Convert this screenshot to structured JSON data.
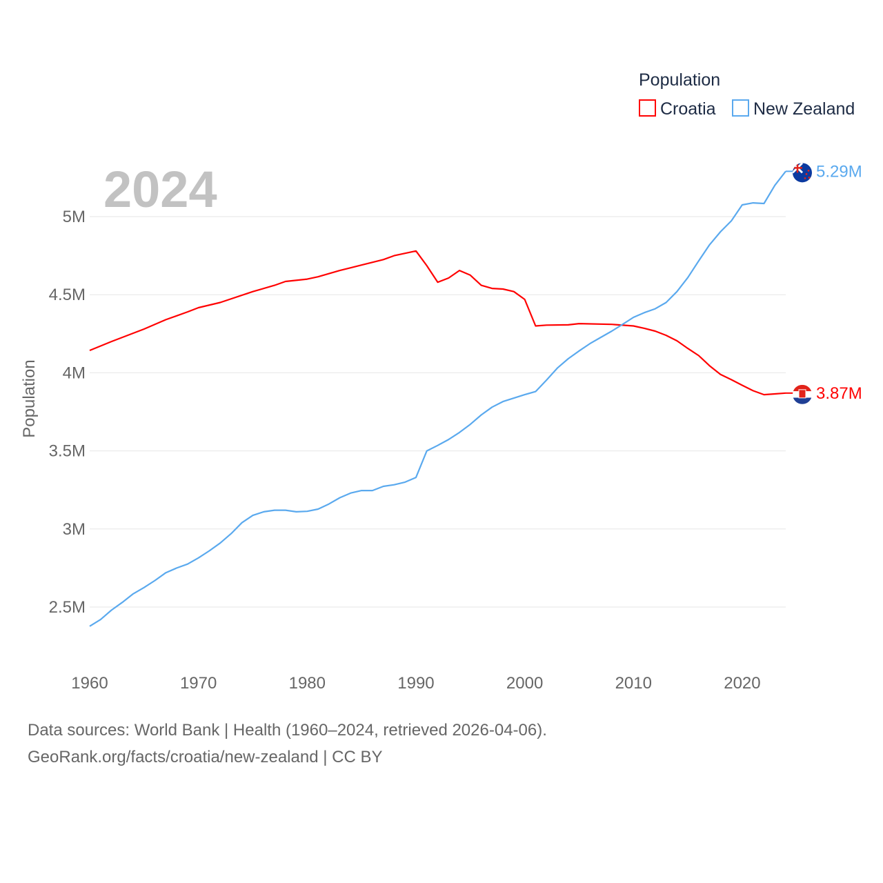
{
  "chart_data": {
    "type": "line",
    "title": "Population",
    "year_label": "2024",
    "ylabel": "Population",
    "xlabel": "",
    "ylim": [
      2.3,
      5.4
    ],
    "xlim": [
      1960,
      2024
    ],
    "y_ticks": [
      {
        "v": 2.5,
        "label": "2.5M"
      },
      {
        "v": 3,
        "label": "3M"
      },
      {
        "v": 3.5,
        "label": "3.5M"
      },
      {
        "v": 4,
        "label": "4M"
      },
      {
        "v": 4.5,
        "label": "4.5M"
      },
      {
        "v": 5,
        "label": "5M"
      }
    ],
    "x_ticks": [
      1960,
      1970,
      1980,
      1990,
      2000,
      2010,
      2020
    ],
    "grid": true,
    "legend_position": "top-right",
    "units": "millions",
    "series": [
      {
        "name": "Croatia",
        "color": "#ff0000",
        "end_label": "3.87M",
        "points": [
          [
            1960,
            4.143
          ],
          [
            1962,
            4.2
          ],
          [
            1965,
            4.28
          ],
          [
            1967,
            4.34
          ],
          [
            1969,
            4.39
          ],
          [
            1970,
            4.417
          ],
          [
            1972,
            4.45
          ],
          [
            1975,
            4.52
          ],
          [
            1977,
            4.56
          ],
          [
            1978,
            4.585
          ],
          [
            1980,
            4.6
          ],
          [
            1981,
            4.615
          ],
          [
            1983,
            4.655
          ],
          [
            1985,
            4.69
          ],
          [
            1987,
            4.725
          ],
          [
            1988,
            4.75
          ],
          [
            1990,
            4.78
          ],
          [
            1991,
            4.686
          ],
          [
            1992,
            4.58
          ],
          [
            1993,
            4.607
          ],
          [
            1994,
            4.655
          ],
          [
            1995,
            4.625
          ],
          [
            1996,
            4.56
          ],
          [
            1997,
            4.54
          ],
          [
            1998,
            4.536
          ],
          [
            1999,
            4.52
          ],
          [
            2000,
            4.47
          ],
          [
            2001,
            4.3
          ],
          [
            2002,
            4.305
          ],
          [
            2004,
            4.307
          ],
          [
            2005,
            4.315
          ],
          [
            2008,
            4.31
          ],
          [
            2010,
            4.3
          ],
          [
            2011,
            4.285
          ],
          [
            2012,
            4.267
          ],
          [
            2013,
            4.24
          ],
          [
            2014,
            4.205
          ],
          [
            2015,
            4.156
          ],
          [
            2016,
            4.11
          ],
          [
            2017,
            4.045
          ],
          [
            2018,
            3.99
          ],
          [
            2019,
            3.956
          ],
          [
            2020,
            3.92
          ],
          [
            2021,
            3.885
          ],
          [
            2022,
            3.86
          ],
          [
            2023,
            3.865
          ],
          [
            2024,
            3.87
          ]
        ]
      },
      {
        "name": "New Zealand",
        "color": "#5aa9ee",
        "end_label": "5.29M",
        "points": [
          [
            1960,
            2.377
          ],
          [
            1961,
            2.42
          ],
          [
            1962,
            2.48
          ],
          [
            1963,
            2.53
          ],
          [
            1964,
            2.585
          ],
          [
            1965,
            2.625
          ],
          [
            1966,
            2.67
          ],
          [
            1967,
            2.72
          ],
          [
            1968,
            2.75
          ],
          [
            1969,
            2.775
          ],
          [
            1970,
            2.815
          ],
          [
            1971,
            2.86
          ],
          [
            1972,
            2.91
          ],
          [
            1973,
            2.97
          ],
          [
            1974,
            3.04
          ],
          [
            1975,
            3.087
          ],
          [
            1976,
            3.11
          ],
          [
            1977,
            3.12
          ],
          [
            1978,
            3.12
          ],
          [
            1979,
            3.11
          ],
          [
            1980,
            3.113
          ],
          [
            1981,
            3.127
          ],
          [
            1982,
            3.16
          ],
          [
            1983,
            3.2
          ],
          [
            1984,
            3.23
          ],
          [
            1985,
            3.246
          ],
          [
            1986,
            3.246
          ],
          [
            1987,
            3.273
          ],
          [
            1988,
            3.283
          ],
          [
            1989,
            3.3
          ],
          [
            1990,
            3.33
          ],
          [
            1991,
            3.5
          ],
          [
            1992,
            3.535
          ],
          [
            1993,
            3.573
          ],
          [
            1994,
            3.618
          ],
          [
            1995,
            3.67
          ],
          [
            1996,
            3.73
          ],
          [
            1997,
            3.78
          ],
          [
            1998,
            3.816
          ],
          [
            1999,
            3.838
          ],
          [
            2000,
            3.86
          ],
          [
            2001,
            3.88
          ],
          [
            2002,
            3.953
          ],
          [
            2003,
            4.03
          ],
          [
            2004,
            4.09
          ],
          [
            2005,
            4.14
          ],
          [
            2006,
            4.187
          ],
          [
            2007,
            4.227
          ],
          [
            2008,
            4.267
          ],
          [
            2009,
            4.31
          ],
          [
            2010,
            4.355
          ],
          [
            2011,
            4.385
          ],
          [
            2012,
            4.41
          ],
          [
            2013,
            4.45
          ],
          [
            2014,
            4.52
          ],
          [
            2015,
            4.61
          ],
          [
            2016,
            4.717
          ],
          [
            2017,
            4.82
          ],
          [
            2018,
            4.903
          ],
          [
            2019,
            4.973
          ],
          [
            2020,
            5.075
          ],
          [
            2021,
            5.088
          ],
          [
            2022,
            5.084
          ],
          [
            2023,
            5.2
          ],
          [
            2024,
            5.29
          ]
        ]
      }
    ]
  },
  "footer": {
    "line1": "Data sources: World Bank | Health (1960–2024, retrieved 2026-04-06).",
    "line2": "GeoRank.org/facts/croatia/new-zealand | CC BY"
  }
}
